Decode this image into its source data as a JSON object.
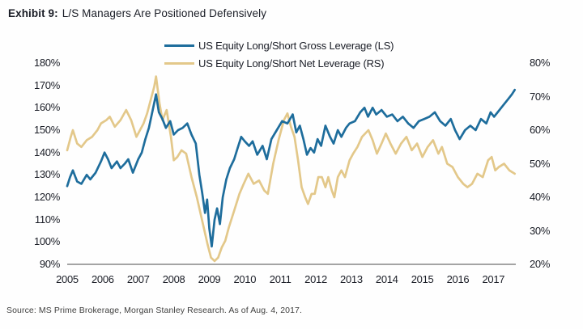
{
  "title": {
    "prefix": "Exhibit 9:",
    "text": "L/S Managers Are Positioned Defensively"
  },
  "legend": [
    {
      "label": "US Equity Long/Short Gross Leverage (LS)",
      "color": "#1e6d9c"
    },
    {
      "label": "US Equity Long/Short Net Leverage (RS)",
      "color": "#e3c88a"
    }
  ],
  "source": "Source: MS Prime Brokerage, Morgan Stanley Research. As of Aug. 4, 2017.",
  "colors": {
    "gross_line": "#1e6d9c",
    "net_line": "#e3c88a",
    "axis_line": "#4a4a4a",
    "text": "#1a1d26"
  },
  "chart_data": {
    "type": "line",
    "title": "L/S Managers Are Positioned Defensively",
    "grid": false,
    "legend_position": "top-center",
    "x_ticks": [
      "2005",
      "2006",
      "2007",
      "2008",
      "2009",
      "2010",
      "2011",
      "2012",
      "2013",
      "2014",
      "2015",
      "2016",
      "2017"
    ],
    "x_tick_years": [
      2005,
      2006,
      2007,
      2008,
      2009,
      2010,
      2011,
      2012,
      2013,
      2014,
      2015,
      2016,
      2017
    ],
    "x_range": [
      2005,
      2017.63
    ],
    "left_axis": {
      "label": "Gross Leverage (LS)",
      "min": 90,
      "max": 180,
      "ticks": [
        "180%",
        "170%",
        "160%",
        "150%",
        "140%",
        "130%",
        "120%",
        "110%",
        "100%",
        "90%"
      ],
      "tick_values": [
        180,
        170,
        160,
        150,
        140,
        130,
        120,
        110,
        100,
        90
      ]
    },
    "right_axis": {
      "label": "Net Leverage (RS)",
      "min": 20,
      "max": 80,
      "ticks": [
        "80%",
        "70%",
        "60%",
        "50%",
        "40%",
        "30%",
        "20%"
      ],
      "tick_values": [
        80,
        70,
        60,
        50,
        40,
        30,
        20
      ]
    },
    "series": [
      {
        "name": "US Equity Long/Short Gross Leverage (LS)",
        "axis": "left",
        "color": "#1e6d9c",
        "points": [
          [
            2005.0,
            125
          ],
          [
            2005.08,
            129
          ],
          [
            2005.16,
            132
          ],
          [
            2005.28,
            127
          ],
          [
            2005.4,
            126
          ],
          [
            2005.55,
            130
          ],
          [
            2005.65,
            128
          ],
          [
            2005.8,
            131
          ],
          [
            2005.95,
            136
          ],
          [
            2006.05,
            140
          ],
          [
            2006.15,
            137
          ],
          [
            2006.25,
            133
          ],
          [
            2006.4,
            136
          ],
          [
            2006.5,
            133
          ],
          [
            2006.62,
            135
          ],
          [
            2006.72,
            137
          ],
          [
            2006.85,
            131
          ],
          [
            2007.0,
            137
          ],
          [
            2007.1,
            140
          ],
          [
            2007.2,
            146
          ],
          [
            2007.3,
            151
          ],
          [
            2007.42,
            160
          ],
          [
            2007.5,
            166
          ],
          [
            2007.58,
            158
          ],
          [
            2007.68,
            155
          ],
          [
            2007.78,
            151
          ],
          [
            2007.9,
            154
          ],
          [
            2008.0,
            148
          ],
          [
            2008.12,
            150
          ],
          [
            2008.25,
            151
          ],
          [
            2008.38,
            153
          ],
          [
            2008.5,
            148
          ],
          [
            2008.62,
            144
          ],
          [
            2008.72,
            130
          ],
          [
            2008.8,
            122
          ],
          [
            2008.88,
            113
          ],
          [
            2008.94,
            119
          ],
          [
            2009.0,
            106
          ],
          [
            2009.07,
            98
          ],
          [
            2009.15,
            110
          ],
          [
            2009.22,
            115
          ],
          [
            2009.3,
            108
          ],
          [
            2009.38,
            120
          ],
          [
            2009.48,
            128
          ],
          [
            2009.58,
            133
          ],
          [
            2009.7,
            137
          ],
          [
            2009.8,
            142
          ],
          [
            2009.9,
            147
          ],
          [
            2010.0,
            145
          ],
          [
            2010.12,
            143
          ],
          [
            2010.22,
            145
          ],
          [
            2010.35,
            139
          ],
          [
            2010.5,
            143
          ],
          [
            2010.62,
            137
          ],
          [
            2010.75,
            146
          ],
          [
            2010.9,
            150
          ],
          [
            2011.05,
            154
          ],
          [
            2011.2,
            153
          ],
          [
            2011.35,
            157
          ],
          [
            2011.45,
            149
          ],
          [
            2011.55,
            152
          ],
          [
            2011.65,
            146
          ],
          [
            2011.75,
            139
          ],
          [
            2011.85,
            142
          ],
          [
            2011.95,
            140
          ],
          [
            2012.05,
            146
          ],
          [
            2012.15,
            143
          ],
          [
            2012.27,
            152
          ],
          [
            2012.4,
            147
          ],
          [
            2012.5,
            144
          ],
          [
            2012.62,
            150
          ],
          [
            2012.72,
            147
          ],
          [
            2012.85,
            151
          ],
          [
            2012.95,
            153
          ],
          [
            2013.1,
            154
          ],
          [
            2013.25,
            158
          ],
          [
            2013.37,
            160
          ],
          [
            2013.47,
            156
          ],
          [
            2013.6,
            160
          ],
          [
            2013.7,
            157
          ],
          [
            2013.85,
            159
          ],
          [
            2014.0,
            156
          ],
          [
            2014.15,
            157
          ],
          [
            2014.3,
            154
          ],
          [
            2014.45,
            156
          ],
          [
            2014.6,
            153
          ],
          [
            2014.75,
            151
          ],
          [
            2014.9,
            154
          ],
          [
            2015.05,
            155
          ],
          [
            2015.2,
            156
          ],
          [
            2015.35,
            158
          ],
          [
            2015.5,
            154
          ],
          [
            2015.65,
            152
          ],
          [
            2015.8,
            155
          ],
          [
            2015.92,
            150
          ],
          [
            2016.05,
            146
          ],
          [
            2016.2,
            150
          ],
          [
            2016.35,
            152
          ],
          [
            2016.5,
            150
          ],
          [
            2016.65,
            155
          ],
          [
            2016.8,
            153
          ],
          [
            2016.92,
            158
          ],
          [
            2017.02,
            156
          ],
          [
            2017.12,
            158
          ],
          [
            2017.22,
            160
          ],
          [
            2017.32,
            162
          ],
          [
            2017.42,
            164
          ],
          [
            2017.52,
            166
          ],
          [
            2017.6,
            168
          ]
        ]
      },
      {
        "name": "US Equity Long/Short Net Leverage (RS)",
        "axis": "right",
        "color": "#e3c88a",
        "points": [
          [
            2005.0,
            54
          ],
          [
            2005.1,
            58
          ],
          [
            2005.16,
            60
          ],
          [
            2005.28,
            56
          ],
          [
            2005.4,
            55
          ],
          [
            2005.55,
            57
          ],
          [
            2005.7,
            58
          ],
          [
            2005.85,
            60
          ],
          [
            2005.95,
            62
          ],
          [
            2006.1,
            63
          ],
          [
            2006.2,
            64
          ],
          [
            2006.34,
            61
          ],
          [
            2006.5,
            63
          ],
          [
            2006.66,
            66
          ],
          [
            2006.8,
            63
          ],
          [
            2006.95,
            58
          ],
          [
            2007.05,
            60
          ],
          [
            2007.15,
            62
          ],
          [
            2007.25,
            65
          ],
          [
            2007.35,
            69
          ],
          [
            2007.45,
            73
          ],
          [
            2007.5,
            76
          ],
          [
            2007.6,
            68
          ],
          [
            2007.68,
            63
          ],
          [
            2007.8,
            66
          ],
          [
            2007.92,
            58
          ],
          [
            2008.0,
            51
          ],
          [
            2008.1,
            52
          ],
          [
            2008.22,
            54
          ],
          [
            2008.35,
            53
          ],
          [
            2008.5,
            46
          ],
          [
            2008.65,
            40
          ],
          [
            2008.8,
            33
          ],
          [
            2008.95,
            26
          ],
          [
            2009.05,
            22
          ],
          [
            2009.15,
            21
          ],
          [
            2009.25,
            22
          ],
          [
            2009.35,
            25
          ],
          [
            2009.45,
            27
          ],
          [
            2009.55,
            31
          ],
          [
            2009.7,
            36
          ],
          [
            2009.85,
            41
          ],
          [
            2009.97,
            44
          ],
          [
            2010.1,
            47
          ],
          [
            2010.25,
            44
          ],
          [
            2010.4,
            45
          ],
          [
            2010.55,
            42
          ],
          [
            2010.65,
            41
          ],
          [
            2010.8,
            50
          ],
          [
            2010.95,
            57
          ],
          [
            2011.1,
            63
          ],
          [
            2011.2,
            65
          ],
          [
            2011.3,
            61
          ],
          [
            2011.4,
            58
          ],
          [
            2011.5,
            51
          ],
          [
            2011.6,
            43
          ],
          [
            2011.7,
            40
          ],
          [
            2011.78,
            38
          ],
          [
            2011.88,
            41
          ],
          [
            2011.97,
            41
          ],
          [
            2012.07,
            46
          ],
          [
            2012.17,
            46
          ],
          [
            2012.27,
            43
          ],
          [
            2012.35,
            46
          ],
          [
            2012.45,
            42
          ],
          [
            2012.52,
            40
          ],
          [
            2012.62,
            46
          ],
          [
            2012.72,
            48
          ],
          [
            2012.82,
            46
          ],
          [
            2012.95,
            51
          ],
          [
            2013.05,
            53
          ],
          [
            2013.17,
            55
          ],
          [
            2013.3,
            58
          ],
          [
            2013.48,
            60
          ],
          [
            2013.6,
            57
          ],
          [
            2013.72,
            53
          ],
          [
            2013.85,
            56
          ],
          [
            2013.97,
            59
          ],
          [
            2014.1,
            56
          ],
          [
            2014.25,
            53
          ],
          [
            2014.4,
            56
          ],
          [
            2014.55,
            58
          ],
          [
            2014.7,
            54
          ],
          [
            2014.85,
            56
          ],
          [
            2015.0,
            52
          ],
          [
            2015.15,
            55
          ],
          [
            2015.3,
            57
          ],
          [
            2015.45,
            53
          ],
          [
            2015.55,
            55
          ],
          [
            2015.7,
            50
          ],
          [
            2015.85,
            49
          ],
          [
            2016.0,
            46
          ],
          [
            2016.15,
            44
          ],
          [
            2016.27,
            43
          ],
          [
            2016.4,
            44
          ],
          [
            2016.55,
            47
          ],
          [
            2016.7,
            46
          ],
          [
            2016.85,
            51
          ],
          [
            2016.95,
            52
          ],
          [
            2017.05,
            48
          ],
          [
            2017.15,
            49
          ],
          [
            2017.3,
            50
          ],
          [
            2017.45,
            48
          ],
          [
            2017.6,
            47
          ]
        ]
      }
    ]
  }
}
